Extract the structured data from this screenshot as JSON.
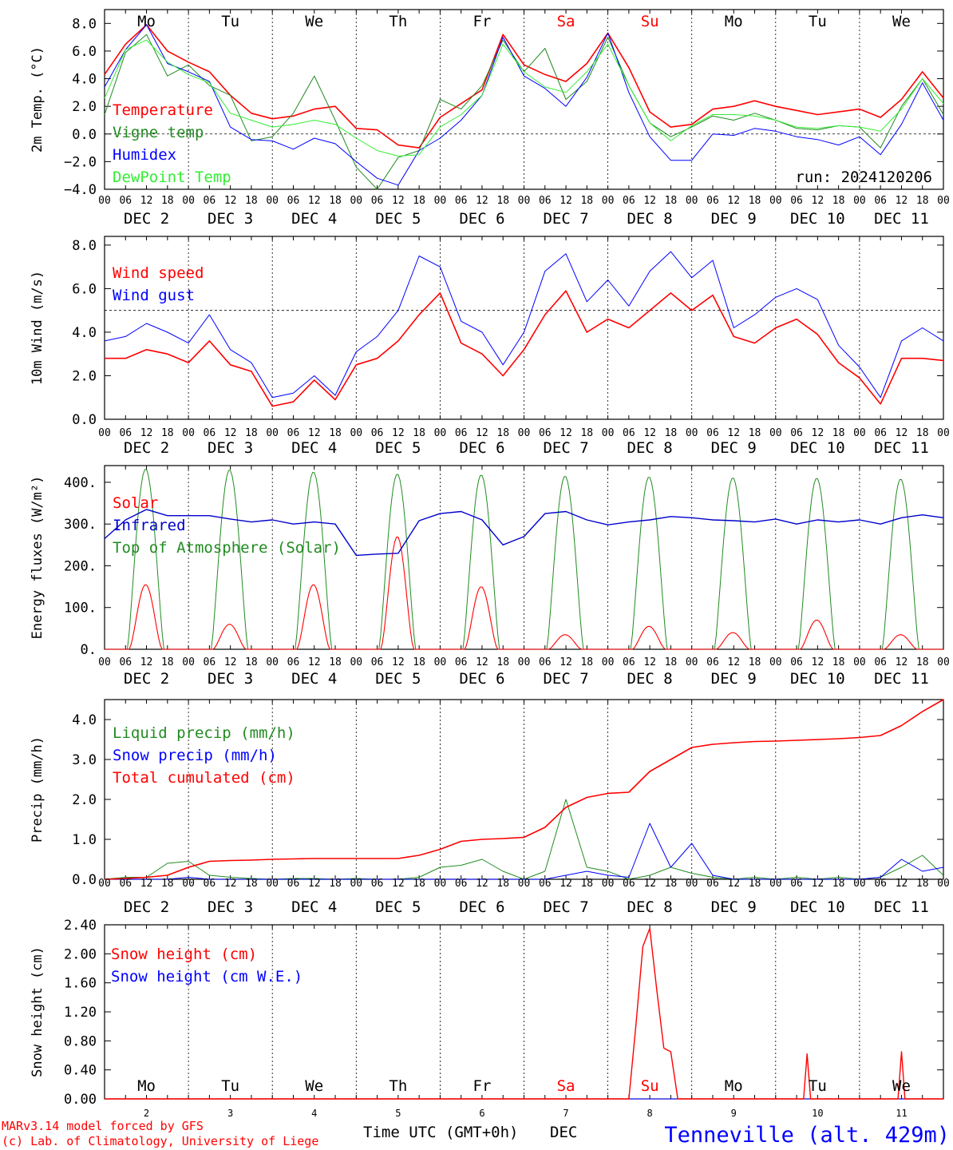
{
  "run_label": "run: 2024120206",
  "footer": {
    "model": "MARv3.14 model forced by GFS",
    "copyright": "(c) Lab. of Climatology, University of Liege",
    "xlabel": "Time UTC (GMT+0h)",
    "month": "DEC",
    "station": "Tenneville (alt. 429m)"
  },
  "weekdays": [
    "Mo",
    "Tu",
    "We",
    "Th",
    "Fr",
    "Sa",
    "Su",
    "Mo",
    "Tu",
    "We"
  ],
  "weekend_days": [
    5,
    6
  ],
  "date_labels": [
    "DEC  2",
    "DEC  3",
    "DEC  4",
    "DEC  5",
    "DEC  6",
    "DEC  7",
    "DEC  8",
    "DEC  9",
    "DEC 10",
    "DEC 11"
  ],
  "day_numbers": [
    "2",
    "3",
    "4",
    "5",
    "6",
    "7",
    "8",
    "9",
    "10",
    "11"
  ],
  "hour_ticks": [
    "00",
    "06",
    "12",
    "18"
  ],
  "colors": {
    "red": "#ff0000",
    "darkgreen": "#228b22",
    "blue": "#0000ff",
    "lightgreen": "#33ee33",
    "navy": "#0000cc"
  },
  "chart_data": [
    {
      "type": "line",
      "ylabel": "2m Temp. (°C)",
      "ylim": [
        -4,
        9
      ],
      "yticks": [
        8,
        6,
        4,
        2,
        0,
        -2,
        -4
      ],
      "ytick_labels": [
        "8.0",
        "6.0",
        "4.0",
        "2.0",
        "0.0",
        "−2.0",
        "−4.0"
      ],
      "ref_line": 0,
      "x_hours": [
        0,
        6,
        12,
        18,
        24,
        30,
        36,
        42,
        48,
        54,
        60,
        66,
        72,
        78,
        84,
        90,
        96,
        102,
        108,
        114,
        120,
        126,
        132,
        138,
        144,
        150,
        156,
        162,
        168,
        174,
        180,
        186,
        192,
        198,
        204,
        210,
        216,
        222,
        228,
        234,
        240
      ],
      "series": [
        {
          "name": "Temperature",
          "color": "red",
          "width": 1.6,
          "values": [
            4.3,
            6.5,
            7.9,
            6.0,
            5.2,
            4.5,
            2.8,
            1.5,
            1.1,
            1.3,
            1.8,
            2.0,
            0.4,
            0.3,
            -0.8,
            -1.0,
            1.2,
            2.2,
            3.2,
            7.2,
            5.0,
            4.3,
            3.8,
            5.1,
            7.3,
            4.8,
            1.6,
            0.5,
            0.7,
            1.8,
            2.0,
            2.4,
            2.0,
            1.7,
            1.4,
            1.6,
            1.8,
            1.2,
            2.5,
            4.5,
            2.6
          ]
        },
        {
          "name": "Vigne temp",
          "color": "darkgreen",
          "width": 1.0,
          "values": [
            1.4,
            5.9,
            7.2,
            4.2,
            5.0,
            3.5,
            2.8,
            -0.5,
            -0.2,
            1.5,
            4.2,
            1.0,
            -2.4,
            -4.0,
            -1.7,
            -1.2,
            2.5,
            1.8,
            3.5,
            6.8,
            4.5,
            6.2,
            2.5,
            3.8,
            7.0,
            3.5,
            0.8,
            -0.2,
            0.5,
            1.3,
            1.0,
            1.5,
            1.0,
            0.4,
            0.3,
            0.6,
            0.5,
            -1.0,
            2.0,
            4.0,
            1.4
          ]
        },
        {
          "name": "Humidex",
          "color": "blue",
          "width": 1.0,
          "values": [
            3.4,
            6.1,
            7.9,
            5.1,
            4.5,
            3.8,
            0.5,
            -0.4,
            -0.5,
            -1.1,
            -0.3,
            -0.7,
            -2.0,
            -3.2,
            -3.7,
            -1.2,
            -0.3,
            1.0,
            2.8,
            7.0,
            4.2,
            3.3,
            2.0,
            4.1,
            7.3,
            3.0,
            -0.2,
            -1.9,
            -1.9,
            0.0,
            -0.1,
            0.4,
            0.2,
            -0.2,
            -0.4,
            -0.8,
            -0.2,
            -1.5,
            0.7,
            3.7,
            1.0
          ]
        },
        {
          "name": "DewPoint Temp",
          "color": "lightgreen",
          "width": 1.0,
          "values": [
            2.6,
            6.1,
            6.8,
            5.2,
            4.3,
            3.7,
            1.5,
            1.0,
            0.5,
            0.7,
            1.0,
            0.7,
            -0.3,
            -1.2,
            -1.6,
            -1.5,
            0.5,
            1.4,
            2.8,
            6.5,
            4.5,
            3.4,
            3.0,
            4.5,
            6.5,
            3.5,
            0.8,
            -0.5,
            0.6,
            1.4,
            1.4,
            1.3,
            1.0,
            0.5,
            0.4,
            0.6,
            0.5,
            0.2,
            1.8,
            4.0,
            2.2
          ]
        }
      ]
    },
    {
      "type": "line",
      "ylabel": "10m Wind (m/s)",
      "ylim": [
        0,
        8.4
      ],
      "yticks": [
        8,
        6,
        4,
        2,
        0
      ],
      "ytick_labels": [
        "8.0",
        "6.0",
        "4.0",
        "2.0",
        "0.0"
      ],
      "ref_line": 5,
      "x_hours": [
        0,
        6,
        12,
        18,
        24,
        30,
        36,
        42,
        48,
        54,
        60,
        66,
        72,
        78,
        84,
        90,
        96,
        102,
        108,
        114,
        120,
        126,
        132,
        138,
        144,
        150,
        156,
        162,
        168,
        174,
        180,
        186,
        192,
        198,
        204,
        210,
        216,
        222,
        228,
        234,
        240
      ],
      "series": [
        {
          "name": "Wind speed",
          "color": "red",
          "width": 1.6,
          "values": [
            2.8,
            2.8,
            3.2,
            3.0,
            2.6,
            3.6,
            2.5,
            2.2,
            0.6,
            0.8,
            1.8,
            0.9,
            2.5,
            2.8,
            3.6,
            4.8,
            5.8,
            3.5,
            3.0,
            2.0,
            3.2,
            4.8,
            5.9,
            4.0,
            4.6,
            4.2,
            5.0,
            5.8,
            5.0,
            5.7,
            3.8,
            3.5,
            4.2,
            4.6,
            3.9,
            2.6,
            1.9,
            0.7,
            2.8,
            2.8,
            2.7
          ]
        },
        {
          "name": "Wind gust",
          "color": "blue",
          "width": 1.0,
          "values": [
            3.6,
            3.8,
            4.4,
            4.0,
            3.5,
            4.8,
            3.2,
            2.6,
            1.0,
            1.2,
            2.0,
            1.1,
            3.1,
            3.8,
            5.0,
            7.5,
            7.0,
            4.5,
            4.0,
            2.5,
            4.0,
            6.8,
            7.6,
            5.4,
            6.4,
            5.2,
            6.8,
            7.7,
            6.5,
            7.3,
            4.2,
            4.8,
            5.6,
            6.0,
            5.5,
            3.4,
            2.4,
            1.0,
            3.6,
            4.2,
            3.6
          ]
        }
      ]
    },
    {
      "type": "line",
      "ylabel": "Energy fluxes (W/m²)",
      "ylim": [
        0,
        440
      ],
      "yticks": [
        400,
        300,
        200,
        100,
        0
      ],
      "ytick_labels": [
        "400.",
        "300.",
        "200.",
        "100.",
        "0."
      ],
      "solar_peaks": [
        155,
        60,
        155,
        270,
        150,
        35,
        55,
        40,
        70,
        35
      ],
      "toa_peak": [
        432,
        430,
        425,
        420,
        418,
        415,
        413,
        411,
        410,
        408
      ],
      "series": [
        {
          "name": "Solar",
          "color": "red",
          "width": 1.0
        },
        {
          "name": "Infrared",
          "color": "navy",
          "width": 1.4,
          "x_hours": [
            0,
            6,
            12,
            18,
            24,
            30,
            36,
            42,
            48,
            54,
            60,
            66,
            72,
            78,
            84,
            90,
            96,
            102,
            108,
            114,
            120,
            126,
            132,
            138,
            144,
            150,
            156,
            162,
            168,
            174,
            180,
            186,
            192,
            198,
            204,
            210,
            216,
            222,
            228,
            234,
            240
          ],
          "values": [
            265,
            310,
            335,
            320,
            320,
            320,
            312,
            305,
            310,
            300,
            305,
            300,
            225,
            228,
            230,
            308,
            325,
            330,
            310,
            250,
            270,
            325,
            330,
            310,
            298,
            305,
            310,
            318,
            315,
            310,
            308,
            305,
            312,
            300,
            310,
            305,
            310,
            300,
            315,
            322,
            315
          ]
        },
        {
          "name": "Top of Atmosphere (Solar)",
          "color": "darkgreen",
          "width": 1.0
        }
      ]
    },
    {
      "type": "line",
      "ylabel": "Precip (mm/h)",
      "ylim": [
        0,
        4.5
      ],
      "yticks": [
        4,
        3,
        2,
        1,
        0
      ],
      "ytick_labels": [
        "4.0",
        "3.0",
        "2.0",
        "1.0",
        "0.0"
      ],
      "x_hours": [
        0,
        6,
        12,
        18,
        24,
        30,
        36,
        42,
        48,
        54,
        60,
        66,
        72,
        78,
        84,
        90,
        96,
        102,
        108,
        114,
        120,
        126,
        132,
        138,
        144,
        150,
        156,
        162,
        168,
        174,
        180,
        186,
        192,
        198,
        204,
        210,
        216,
        222,
        228,
        234,
        240
      ],
      "series": [
        {
          "name": "Liquid precip (mm/h)",
          "color": "darkgreen",
          "width": 1.0,
          "values": [
            0,
            0.05,
            0.05,
            0.4,
            0.45,
            0.1,
            0.05,
            0.02,
            0,
            0.02,
            0.02,
            0,
            0.02,
            0,
            0,
            0.05,
            0.3,
            0.35,
            0.5,
            0.2,
            0,
            0.2,
            2.0,
            0.3,
            0.2,
            0,
            0.1,
            0.3,
            0.15,
            0.05,
            0,
            0.05,
            0,
            0.05,
            0,
            0.05,
            0,
            0.05,
            0.3,
            0.6,
            0.1
          ]
        },
        {
          "name": "Snow precip (mm/h)",
          "color": "blue",
          "width": 1.0,
          "values": [
            0,
            0,
            0,
            0,
            0.05,
            0,
            0,
            0,
            0,
            0,
            0,
            0,
            0,
            0,
            0,
            0,
            0,
            0,
            0,
            0,
            0,
            0,
            0.1,
            0.2,
            0.1,
            0.05,
            1.4,
            0.3,
            0.9,
            0.1,
            0,
            0,
            0,
            0,
            0,
            0,
            0,
            0.05,
            0.5,
            0.2,
            0.3
          ]
        },
        {
          "name": "Total cumulated (cm)",
          "color": "red",
          "width": 1.6,
          "values": [
            0,
            0.02,
            0.05,
            0.1,
            0.3,
            0.45,
            0.47,
            0.48,
            0.5,
            0.51,
            0.52,
            0.52,
            0.52,
            0.52,
            0.52,
            0.6,
            0.75,
            0.95,
            1.0,
            1.02,
            1.05,
            1.3,
            1.8,
            2.05,
            2.15,
            2.18,
            2.7,
            3.0,
            3.3,
            3.38,
            3.42,
            3.45,
            3.46,
            3.48,
            3.5,
            3.52,
            3.55,
            3.6,
            3.85,
            4.2,
            4.5
          ]
        }
      ]
    },
    {
      "type": "line",
      "ylabel": "Snow height (cm)",
      "ylim": [
        0,
        2.4
      ],
      "yticks": [
        2.4,
        2.0,
        1.6,
        1.2,
        0.8,
        0.4,
        0.0
      ],
      "ytick_labels": [
        "2.40",
        "2.00",
        "1.60",
        "1.20",
        "0.80",
        "0.40",
        "0.00"
      ],
      "series": [
        {
          "name": "Snow height (cm)",
          "color": "red",
          "width": 1.4,
          "points": [
            [
              0,
              0
            ],
            [
              150,
              0
            ],
            [
              152,
              1.0
            ],
            [
              154,
              2.1
            ],
            [
              156,
              2.35
            ],
            [
              158,
              1.5
            ],
            [
              160,
              0.7
            ],
            [
              162,
              0.65
            ],
            [
              164,
              0
            ],
            [
              200,
              0
            ],
            [
              201,
              0.62
            ],
            [
              202,
              0
            ],
            [
              227,
              0
            ],
            [
              228,
              0.65
            ],
            [
              229,
              0
            ],
            [
              240,
              0
            ]
          ]
        },
        {
          "name": "Snow height (cm W.E.)",
          "color": "blue",
          "width": 1.0,
          "points": [
            [
              0,
              0
            ],
            [
              240,
              0
            ]
          ]
        }
      ]
    }
  ]
}
